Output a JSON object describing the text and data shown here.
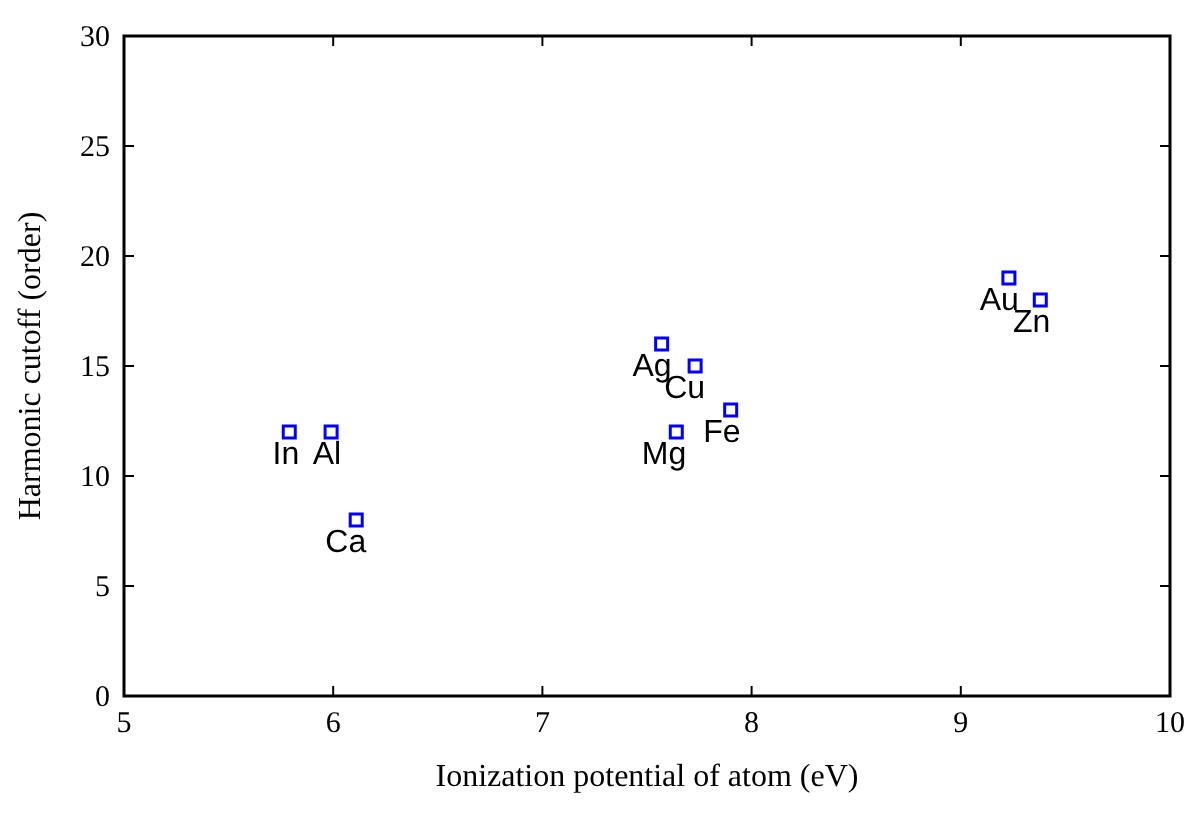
{
  "chart_data": {
    "type": "scatter",
    "xlabel": "Ionization potential of atom (eV)",
    "ylabel": "Harmonic cutoff (order)",
    "x": [
      5.79,
      5.99,
      6.11,
      7.57,
      7.73,
      7.64,
      7.9,
      9.23,
      9.38
    ],
    "series": [
      {
        "color": "#0000ff",
        "values": [
          12,
          12,
          8,
          16,
          15,
          12,
          13,
          19,
          18
        ]
      }
    ],
    "marker": "square",
    "grid": false,
    "xlim": [
      5,
      10
    ],
    "xticks": [
      5,
      6,
      7,
      8,
      9,
      10
    ],
    "ylim": [
      0,
      30
    ],
    "yticks": [
      0,
      5,
      10,
      15,
      20,
      25,
      30
    ],
    "annotations": [
      {
        "text": "In",
        "x": 5.79,
        "y": 12
      },
      {
        "text": "Al",
        "x": 5.99,
        "y": 12
      },
      {
        "text": "Ca",
        "x": 6.11,
        "y": 8
      },
      {
        "text": "Ag",
        "x": 7.57,
        "y": 16
      },
      {
        "text": "Cu",
        "x": 7.73,
        "y": 15
      },
      {
        "text": "Mg",
        "x": 7.64,
        "y": 12
      },
      {
        "text": "Fe",
        "x": 7.9,
        "y": 13
      },
      {
        "text": "Au",
        "x": 9.23,
        "y": 19
      },
      {
        "text": "Zn",
        "x": 9.38,
        "y": 18
      }
    ]
  }
}
